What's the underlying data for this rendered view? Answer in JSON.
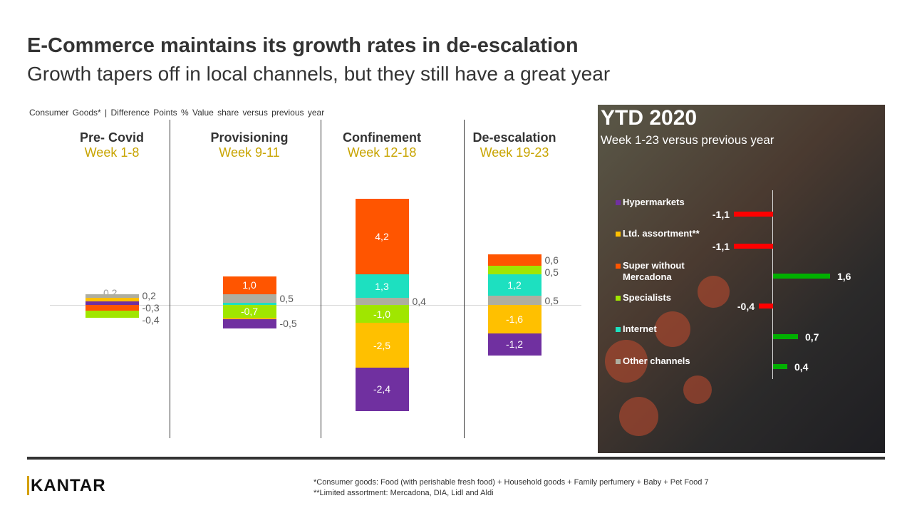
{
  "title": "E-Commerce maintains its growth rates in de-escalation",
  "subtitle": "Growth tapers off in local channels, but they still have a great year",
  "note": "Consumer Goods* | Difference Points % Value share versus previous year",
  "colors": {
    "Hypermarkets": "#7030a0",
    "Ltd. assortment": "#ffc000",
    "Super without Mercadona": "#ff5500",
    "Specialists": "#a0e600",
    "Internet": "#1de0c0",
    "Other channels": "#aeaea0",
    "positive": "#00b000",
    "negative": "#ff0000"
  },
  "chart_data": [
    {
      "type": "bar",
      "stacked": true,
      "grid": false,
      "ylabel": "",
      "phases": [
        {
          "name": "Pre- Covid",
          "weeks": "Week 1-8",
          "segments": [
            {
              "channel": "Super without Mercadona",
              "value": -0.3,
              "label": "-0,3"
            },
            {
              "channel": "Specialists",
              "value": -0.4,
              "label": "-0,4"
            },
            {
              "channel": "Other channels",
              "value": 0.2,
              "label": "0,2"
            },
            {
              "channel": "Ltd. assortment",
              "value": 0.2,
              "label": ""
            },
            {
              "channel": "Hypermarkets",
              "value": 0.2,
              "label": "0,2"
            }
          ]
        },
        {
          "name": "Provisioning",
          "weeks": "Week 9-11",
          "segments": [
            {
              "channel": "Super without Mercadona",
              "value": 1.0,
              "label": "1,0"
            },
            {
              "channel": "Other channels",
              "value": 0.5,
              "label": "0,5"
            },
            {
              "channel": "Internet",
              "value": 0.1,
              "label": ""
            },
            {
              "channel": "Specialists",
              "value": -0.7,
              "label": "-0,7"
            },
            {
              "channel": "Ltd. assortment",
              "value": -0.1,
              "label": ""
            },
            {
              "channel": "Hypermarkets",
              "value": -0.5,
              "label": "-0,5"
            }
          ]
        },
        {
          "name": "Confinement",
          "weeks": "Week 12-18",
          "segments": [
            {
              "channel": "Super without Mercadona",
              "value": 4.2,
              "label": "4,2"
            },
            {
              "channel": "Internet",
              "value": 1.3,
              "label": "1,3"
            },
            {
              "channel": "Other channels",
              "value": 0.4,
              "label": "0,4"
            },
            {
              "channel": "Specialists",
              "value": -1.0,
              "label": "-1,0"
            },
            {
              "channel": "Ltd. assortment",
              "value": -2.5,
              "label": "-2,5"
            },
            {
              "channel": "Hypermarkets",
              "value": -2.4,
              "label": "-2,4"
            }
          ]
        },
        {
          "name": "De-escalation",
          "weeks": "Week 19-23",
          "segments": [
            {
              "channel": "Super without Mercadona",
              "value": 0.6,
              "label": "0,6"
            },
            {
              "channel": "Specialists",
              "value": 0.5,
              "label": "0,5"
            },
            {
              "channel": "Internet",
              "value": 1.2,
              "label": "1,2"
            },
            {
              "channel": "Other channels",
              "value": 0.5,
              "label": "0,5"
            },
            {
              "channel": "Ltd. assortment",
              "value": -1.6,
              "label": "-1,6"
            },
            {
              "channel": "Hypermarkets",
              "value": -1.2,
              "label": "-1,2"
            }
          ]
        }
      ]
    },
    {
      "type": "bar",
      "orientation": "horizontal",
      "title": "YTD 2020",
      "subtitle": "Week 1-23 versus previous year",
      "categories": [
        "Hypermarkets",
        "Ltd. assortment**",
        "Super without Mercadona",
        "Specialists",
        "Internet",
        "Other channels"
      ],
      "values": [
        -1.1,
        -1.1,
        1.6,
        -0.4,
        0.7,
        0.4
      ],
      "labels": [
        "-1,1",
        "-1,1",
        "1,6",
        "-0,4",
        "0,7",
        "0,4"
      ]
    }
  ],
  "footer": {
    "logo": "KANTAR",
    "footnote1": "*Consumer goods: Food (with perishable fresh food) + Household goods + Family perfumery + Baby + Pet Food 7",
    "footnote2": "**Limited assortment: Mercadona, DIA,  Lidl and Aldi"
  }
}
